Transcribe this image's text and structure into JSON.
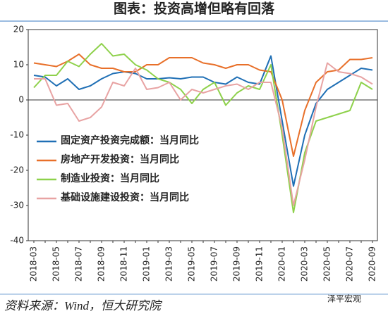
{
  "chart_data": {
    "type": "line",
    "title": "图表：投资高增但略有回落",
    "categories": [
      "2018-03",
      null,
      "2018-05",
      null,
      "2018-07",
      null,
      "2018-09",
      null,
      "2018-11",
      null,
      "2019-01",
      null,
      "2019-03",
      null,
      "2019-05",
      null,
      "2019-07",
      null,
      "2019-09",
      null,
      "2019-11",
      null,
      "2020-01",
      null,
      "2020-03",
      null,
      "2020-05",
      null,
      "2020-07",
      null,
      "2020-09"
    ],
    "series": [
      {
        "name": "固定资产投资完成额：当月同比",
        "color": "#1f6fb5",
        "values": [
          7,
          6.5,
          4,
          6,
          3,
          4,
          6,
          7.5,
          8,
          7.5,
          6,
          6,
          6.3,
          6,
          6.5,
          6.5,
          5,
          4.5,
          6.5,
          5,
          4.5,
          12.5,
          -6,
          -24.5,
          -10,
          -1,
          3,
          5,
          7,
          9,
          8.5
        ]
      },
      {
        "name": "房地产开发投资：当月同比",
        "color": "#e8702a",
        "values": [
          10.5,
          10,
          9.5,
          11,
          13,
          10,
          9,
          9,
          8,
          8,
          10,
          10,
          12,
          12,
          12,
          10.5,
          10,
          9,
          10,
          10,
          8.5,
          8,
          0,
          -16,
          -3,
          5,
          8,
          8.5,
          11.5,
          11.5,
          12
        ]
      },
      {
        "name": "制造业投资：当月同比",
        "color": "#8ed14b",
        "values": [
          3.5,
          7,
          7,
          11,
          9.5,
          13,
          16,
          12.5,
          13,
          10,
          8.5,
          6,
          5,
          3,
          -1,
          3,
          5,
          -1.5,
          2,
          4,
          3,
          10,
          -10,
          -32,
          -15,
          -6,
          -5,
          -4,
          -3,
          5,
          3
        ]
      },
      {
        "name": "基础设施建设投资：当月同比",
        "color": "#e8a3a3",
        "values": [
          6,
          6,
          -1.5,
          -1,
          -6,
          -5,
          -2,
          5,
          4,
          9,
          3,
          3.5,
          5,
          0,
          3,
          2,
          3,
          4,
          4.5,
          3,
          5,
          5,
          -8,
          -30,
          -17,
          -2,
          10.5,
          8,
          7.5,
          6.5,
          4.5
        ]
      }
    ],
    "ylim": [
      -40,
      20
    ],
    "yticks": [
      -40,
      -30,
      -20,
      -10,
      0,
      10,
      20
    ],
    "source": "资料来源：Wind，恒大研究院",
    "watermark": "泽平宏观"
  }
}
